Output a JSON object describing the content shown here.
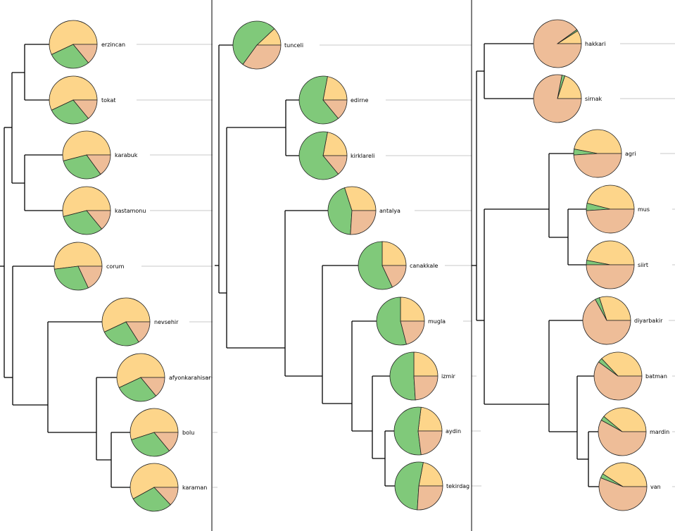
{
  "colors": {
    "category_a": "#fdd58a",
    "category_b": "#80c97a",
    "category_c": "#eebd98",
    "tree": "#000000",
    "guide": "#c8c8c8"
  },
  "panels": [
    {
      "id": "panel-1",
      "leaves": [
        {
          "label": "erzincan",
          "shares": [
            0.57,
            0.29,
            0.14
          ]
        },
        {
          "label": "tokat",
          "shares": [
            0.57,
            0.29,
            0.14
          ]
        },
        {
          "label": "karabuk",
          "shares": [
            0.54,
            0.31,
            0.15
          ]
        },
        {
          "label": "kastamonu",
          "shares": [
            0.54,
            0.32,
            0.14
          ]
        },
        {
          "label": "corum",
          "shares": [
            0.52,
            0.3,
            0.18
          ]
        },
        {
          "label": "nevsehir",
          "shares": [
            0.57,
            0.27,
            0.16
          ]
        },
        {
          "label": "afyonkarahisar",
          "shares": [
            0.57,
            0.29,
            0.14
          ]
        },
        {
          "label": "bolu",
          "shares": [
            0.55,
            0.31,
            0.14
          ]
        },
        {
          "label": "karaman",
          "shares": [
            0.58,
            0.29,
            0.13
          ]
        }
      ]
    },
    {
      "id": "panel-2",
      "leaves": [
        {
          "label": "tunceli",
          "shares": [
            0.12,
            0.53,
            0.35
          ]
        },
        {
          "label": "edirne",
          "shares": [
            0.22,
            0.64,
            0.14
          ]
        },
        {
          "label": "kirklareli",
          "shares": [
            0.22,
            0.64,
            0.14
          ]
        },
        {
          "label": "antalya",
          "shares": [
            0.3,
            0.44,
            0.26
          ]
        },
        {
          "label": "canakkale",
          "shares": [
            0.25,
            0.57,
            0.18
          ]
        },
        {
          "label": "mugla",
          "shares": [
            0.25,
            0.54,
            0.21
          ]
        },
        {
          "label": "izmir",
          "shares": [
            0.25,
            0.51,
            0.24
          ]
        },
        {
          "label": "aydin",
          "shares": [
            0.23,
            0.54,
            0.23
          ]
        },
        {
          "label": "tekirdag",
          "shares": [
            0.22,
            0.52,
            0.26
          ]
        }
      ]
    },
    {
      "id": "panel-3",
      "leaves": [
        {
          "label": "hakkari",
          "shares": [
            0.09,
            0.01,
            0.9
          ]
        },
        {
          "label": "sirnak",
          "shares": [
            0.2,
            0.02,
            0.78
          ]
        },
        {
          "label": "agri",
          "shares": [
            0.47,
            0.04,
            0.49
          ]
        },
        {
          "label": "mus",
          "shares": [
            0.46,
            0.05,
            0.49
          ]
        },
        {
          "label": "siirt",
          "shares": [
            0.47,
            0.03,
            0.5
          ]
        },
        {
          "label": "diyarbakir",
          "shares": [
            0.3,
            0.03,
            0.67
          ]
        },
        {
          "label": "batman",
          "shares": [
            0.37,
            0.03,
            0.6
          ]
        },
        {
          "label": "mardin",
          "shares": [
            0.39,
            0.03,
            0.58
          ]
        },
        {
          "label": "van",
          "shares": [
            0.41,
            0.03,
            0.56
          ]
        }
      ]
    }
  ]
}
